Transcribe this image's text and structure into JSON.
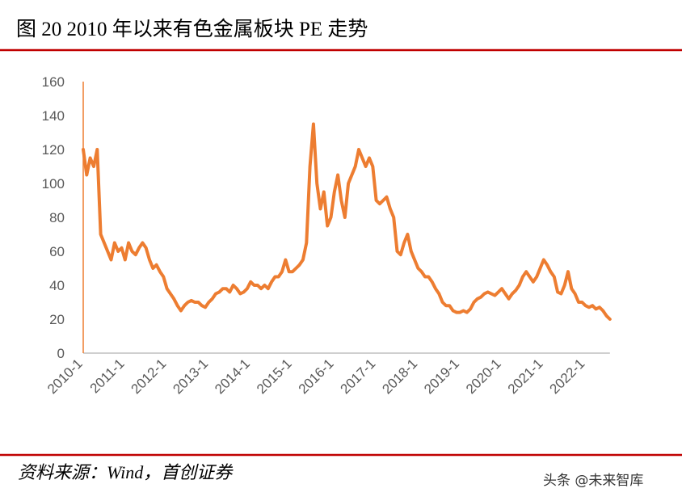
{
  "chart_data": {
    "type": "line",
    "title": "图 20 2010 年以来有色金属板块 PE 走势",
    "source": "资料来源：Wind，首创证券",
    "watermark": "头条 @未来智库",
    "color": "#ed7d31",
    "categories": [
      "2010-1",
      null,
      null,
      null,
      null,
      null,
      null,
      null,
      null,
      null,
      null,
      null,
      "2011-1",
      null,
      null,
      null,
      null,
      null,
      null,
      null,
      null,
      null,
      null,
      null,
      "2012-1",
      null,
      null,
      null,
      null,
      null,
      null,
      null,
      null,
      null,
      null,
      null,
      "2013-1",
      null,
      null,
      null,
      null,
      null,
      null,
      null,
      null,
      null,
      null,
      null,
      "2014-1",
      null,
      null,
      null,
      null,
      null,
      null,
      null,
      null,
      null,
      null,
      null,
      "2015-1",
      null,
      null,
      null,
      null,
      null,
      null,
      null,
      null,
      null,
      null,
      null,
      "2016-1",
      null,
      null,
      null,
      null,
      null,
      null,
      null,
      null,
      null,
      null,
      null,
      "2017-1",
      null,
      null,
      null,
      null,
      null,
      null,
      null,
      null,
      null,
      null,
      null,
      "2018-1",
      null,
      null,
      null,
      null,
      null,
      null,
      null,
      null,
      null,
      null,
      null,
      "2019-1",
      null,
      null,
      null,
      null,
      null,
      null,
      null,
      null,
      null,
      null,
      null,
      "2020-1",
      null,
      null,
      null,
      null,
      null,
      null,
      null,
      null,
      null,
      null,
      null,
      "2021-1",
      null,
      null,
      null,
      null,
      null,
      null,
      null,
      null,
      null,
      null,
      null,
      "2022-1",
      null,
      null,
      null,
      null,
      null,
      null,
      null
    ],
    "values": [
      120,
      105,
      115,
      110,
      120,
      70,
      65,
      60,
      55,
      65,
      60,
      62,
      55,
      65,
      60,
      58,
      62,
      65,
      62,
      55,
      50,
      52,
      48,
      45,
      38,
      35,
      32,
      28,
      25,
      28,
      30,
      31,
      30,
      30,
      28,
      27,
      30,
      32,
      35,
      36,
      38,
      38,
      36,
      40,
      38,
      35,
      36,
      38,
      42,
      40,
      40,
      38,
      40,
      38,
      42,
      45,
      45,
      48,
      55,
      48,
      48,
      50,
      52,
      55,
      65,
      110,
      135,
      100,
      85,
      95,
      75,
      80,
      95,
      105,
      90,
      80,
      100,
      105,
      110,
      120,
      115,
      110,
      115,
      110,
      90,
      88,
      90,
      92,
      85,
      80,
      60,
      58,
      65,
      70,
      60,
      55,
      50,
      48,
      45,
      45,
      42,
      38,
      35,
      30,
      28,
      28,
      25,
      24,
      24,
      25,
      24,
      26,
      30,
      32,
      33,
      35,
      36,
      35,
      34,
      36,
      38,
      35,
      32,
      35,
      37,
      40,
      45,
      48,
      45,
      42,
      45,
      50,
      55,
      52,
      48,
      45,
      36,
      35,
      40,
      48,
      38,
      35,
      30,
      30,
      28,
      27,
      28,
      26,
      27,
      25,
      22,
      20
    ],
    "ylim": [
      0,
      160
    ],
    "yticks": [
      0,
      20,
      40,
      60,
      80,
      100,
      120,
      140,
      160
    ],
    "grid": false
  }
}
